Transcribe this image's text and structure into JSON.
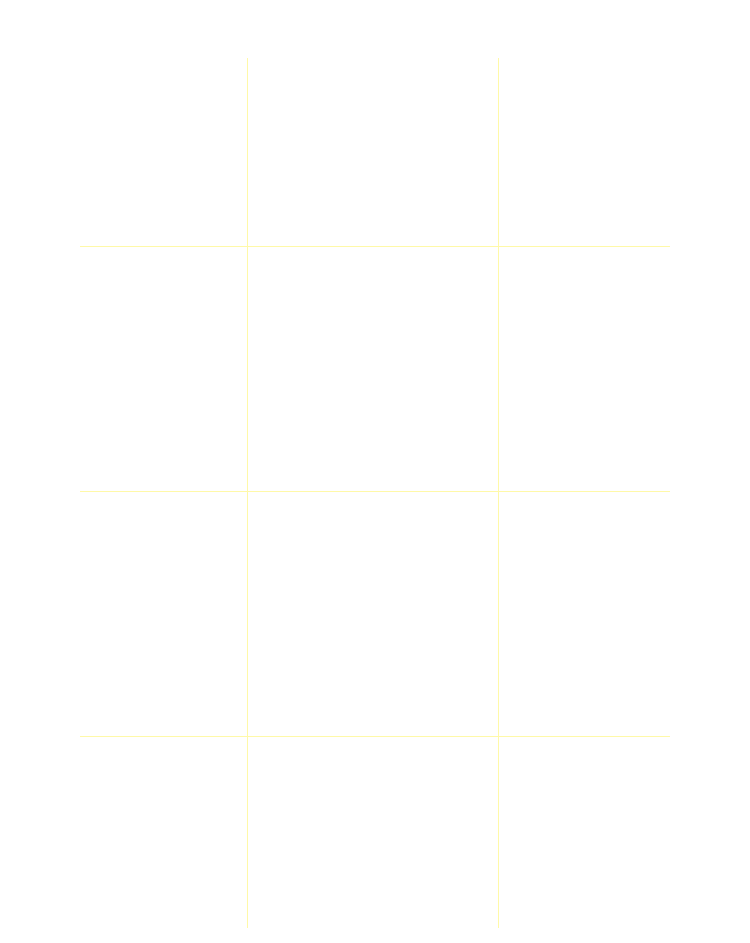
{
  "page": {
    "background_color": "#ffffff"
  },
  "guides": {
    "color": "#fff9a8",
    "vertical_count": 2,
    "horizontal_count": 3
  }
}
